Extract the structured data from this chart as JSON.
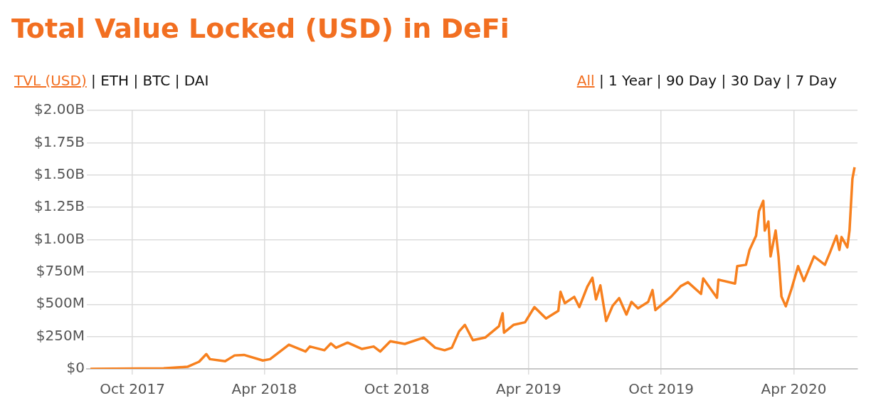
{
  "chart_data": {
    "type": "line",
    "title": "Total Value Locked (USD) in DeFi",
    "annotations": [
      "TVL (USD) | ETH | BTC | DAI",
      "All | 1 Year | 90 Day | 30 Day | 7 Day"
    ],
    "x": [
      "2017-08-04",
      "2017-11-13",
      "2017-12-16",
      "2018-01-01",
      "2018-01-11",
      "2018-01-16",
      "2018-02-06",
      "2018-02-19",
      "2018-03-04",
      "2018-03-30",
      "2018-04-09",
      "2018-05-05",
      "2018-05-28",
      "2018-06-03",
      "2018-06-23",
      "2018-07-02",
      "2018-07-09",
      "2018-07-25",
      "2018-08-14",
      "2018-08-30",
      "2018-09-08",
      "2018-09-22",
      "2018-10-12",
      "2018-11-07",
      "2018-11-23",
      "2018-12-06",
      "2018-12-16",
      "2018-12-26",
      "2019-01-03",
      "2019-01-14",
      "2019-01-31",
      "2019-02-19",
      "2019-02-24",
      "2019-02-26",
      "2019-03-11",
      "2019-03-27",
      "2019-04-09",
      "2019-04-25",
      "2019-05-12",
      "2019-05-15",
      "2019-05-21",
      "2019-06-03",
      "2019-06-10",
      "2019-06-21",
      "2019-06-28",
      "2019-07-03",
      "2019-07-09",
      "2019-07-17",
      "2019-07-26",
      "2019-08-04",
      "2019-08-14",
      "2019-08-21",
      "2019-08-30",
      "2019-09-13",
      "2019-09-19",
      "2019-09-23",
      "2019-10-15",
      "2019-10-28",
      "2019-11-07",
      "2019-11-25",
      "2019-11-28",
      "2019-12-17",
      "2019-12-19",
      "2020-01-11",
      "2020-01-14",
      "2020-01-26",
      "2020-01-31",
      "2020-02-09",
      "2020-02-13",
      "2020-02-19",
      "2020-02-21",
      "2020-02-26",
      "2020-02-29",
      "2020-03-07",
      "2020-03-11",
      "2020-03-15",
      "2020-03-21",
      "2020-03-29",
      "2020-04-07",
      "2020-04-15",
      "2020-04-29",
      "2020-05-14",
      "2020-05-21",
      "2020-05-30",
      "2020-06-03",
      "2020-06-06",
      "2020-06-14",
      "2020-06-17",
      "2020-06-21",
      "2020-06-24"
    ],
    "series": [
      {
        "color": "#f7801e",
        "values": [
          0,
          4000000,
          16000000,
          55000000,
          114000000,
          75000000,
          59000000,
          104000000,
          108000000,
          65000000,
          75000000,
          187000000,
          134000000,
          173000000,
          144000000,
          197000000,
          163000000,
          203000000,
          154000000,
          173000000,
          134000000,
          213000000,
          193000000,
          242000000,
          163000000,
          144000000,
          163000000,
          290000000,
          340000000,
          222000000,
          242000000,
          330000000,
          430000000,
          280000000,
          340000000,
          360000000,
          478000000,
          390000000,
          449000000,
          596000000,
          508000000,
          557000000,
          478000000,
          636000000,
          705000000,
          537000000,
          646000000,
          370000000,
          488000000,
          547000000,
          420000000,
          518000000,
          468000000,
          518000000,
          610000000,
          455000000,
          560000000,
          640000000,
          670000000,
          580000000,
          700000000,
          550000000,
          690000000,
          660000000,
          795000000,
          805000000,
          920000000,
          1030000000,
          1220000000,
          1300000000,
          1070000000,
          1140000000,
          870000000,
          1070000000,
          870000000,
          560000000,
          484000000,
          620000000,
          795000000,
          680000000,
          870000000,
          805000000,
          900000000,
          1030000000,
          920000000,
          1020000000,
          940000000,
          1070000000,
          1470000000,
          1560000000
        ]
      }
    ],
    "xlim": [
      "2017-07-30",
      "2020-06-28"
    ],
    "xticks": [
      {
        "value": "2017-10-01",
        "label": "Oct 2017"
      },
      {
        "value": "2018-04-01",
        "label": "Apr 2018"
      },
      {
        "value": "2018-10-01",
        "label": "Oct 2018"
      },
      {
        "value": "2019-04-01",
        "label": "Apr 2019"
      },
      {
        "value": "2019-10-01",
        "label": "Oct 2019"
      },
      {
        "value": "2020-04-01",
        "label": "Apr 2020"
      }
    ],
    "ylim": [
      0,
      2000000000
    ],
    "yticks": [
      {
        "value": 0,
        "label": "$0"
      },
      {
        "value": 250000000,
        "label": "$250M"
      },
      {
        "value": 500000000,
        "label": "$500M"
      },
      {
        "value": 750000000,
        "label": "$750M"
      },
      {
        "value": 1000000000,
        "label": "$1.00B"
      },
      {
        "value": 1250000000,
        "label": "$1.25B"
      },
      {
        "value": 1500000000,
        "label": "$1.50B"
      },
      {
        "value": 1750000000,
        "label": "$1.75B"
      },
      {
        "value": 2000000000,
        "label": "$2.00B"
      }
    ],
    "grid": true,
    "marker": "none",
    "line_style": "solid",
    "legend": false
  }
}
